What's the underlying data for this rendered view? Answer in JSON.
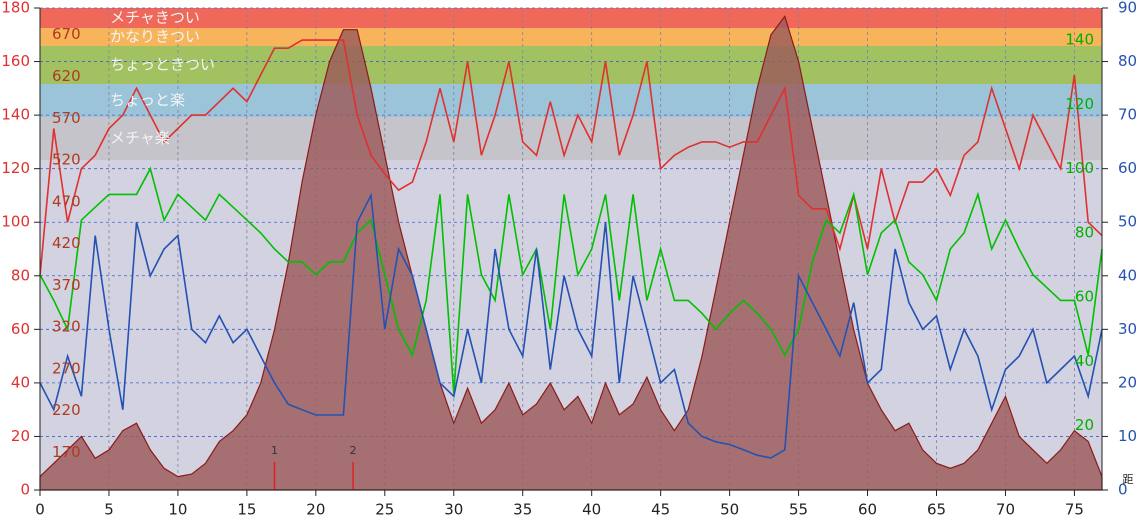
{
  "chart_data": {
    "type": "line",
    "xlabel": "距",
    "xlim": [
      0,
      77
    ],
    "xticks": [
      0,
      5,
      10,
      15,
      20,
      25,
      30,
      35,
      40,
      45,
      50,
      55,
      60,
      65,
      70,
      75
    ],
    "ylim": [
      0,
      180
    ],
    "yticks": [
      0,
      20,
      40,
      60,
      80,
      100,
      120,
      140,
      160,
      180
    ],
    "y2lim": [
      0,
      90
    ],
    "y2ticks": [
      0,
      10,
      20,
      30,
      40,
      50,
      60,
      70,
      80,
      90
    ],
    "y3lim": [
      125,
      702
    ],
    "y3ticks": [
      170,
      220,
      270,
      320,
      370,
      420,
      470,
      520,
      570,
      620,
      670
    ],
    "y4lim": [
      0,
      150
    ],
    "y4ticks": [
      20,
      40,
      60,
      80,
      100,
      120,
      140
    ],
    "grid": true,
    "bands": [
      {
        "label": "メチャきつい",
        "from": 172.5,
        "to": 180,
        "color": "#f0685a"
      },
      {
        "label": "かなりきつい",
        "from": 165.8,
        "to": 172.5,
        "color": "#f7b45a"
      },
      {
        "label": "ちょっときつい",
        "from": 151.6,
        "to": 165.8,
        "color": "#a2c262"
      },
      {
        "label": "ちょっと楽",
        "from": 139.3,
        "to": 151.6,
        "color": "#9cc4d8"
      },
      {
        "label": "メチャ楽",
        "from": 123.2,
        "to": 139.3,
        "color": "#c4c4ca"
      }
    ],
    "markers": [
      {
        "x": 17,
        "label": "1"
      },
      {
        "x": 22.7,
        "label": "2"
      }
    ],
    "x": [
      0,
      1,
      2,
      3,
      4,
      5,
      6,
      7,
      8,
      9,
      10,
      11,
      12,
      13,
      14,
      15,
      16,
      17,
      18,
      19,
      20,
      21,
      22,
      23,
      24,
      25,
      26,
      27,
      28,
      29,
      30,
      31,
      32,
      33,
      34,
      35,
      36,
      37,
      38,
      39,
      40,
      41,
      42,
      43,
      44,
      45,
      46,
      47,
      48,
      49,
      50,
      51,
      52,
      53,
      54,
      55,
      56,
      57,
      58,
      59,
      60,
      61,
      62,
      63,
      64,
      65,
      66,
      67,
      68,
      69,
      70,
      71,
      72,
      73,
      74,
      75,
      76,
      77
    ],
    "series": [
      {
        "style": "area",
        "axis": "y3",
        "color": "#8b1a1a",
        "values": [
          141,
          157,
          173,
          189,
          163,
          173,
          196,
          205,
          173,
          151,
          141,
          144,
          157,
          183,
          196,
          215,
          253,
          317,
          397,
          494,
          574,
          638,
          676,
          676,
          606,
          526,
          446,
          381,
          317,
          253,
          205,
          247,
          205,
          221,
          253,
          215,
          228,
          253,
          221,
          237,
          205,
          253,
          215,
          228,
          260,
          221,
          196,
          221,
          285,
          365,
          446,
          526,
          606,
          670,
          692,
          638,
          558,
          478,
          397,
          317,
          253,
          221,
          196,
          205,
          173,
          157,
          151,
          157,
          173,
          205,
          237,
          189,
          173,
          157,
          173,
          196,
          183,
          141
        ]
      },
      {
        "style": "line",
        "axis": "y",
        "color": "#e03030",
        "values": [
          80,
          135,
          100,
          120,
          125,
          135,
          140,
          150,
          140,
          130,
          135,
          140,
          140,
          145,
          150,
          145,
          155,
          165,
          165,
          168,
          168,
          168,
          168,
          140,
          125,
          118,
          112,
          115,
          130,
          150,
          130,
          160,
          125,
          140,
          160,
          130,
          125,
          145,
          125,
          140,
          130,
          160,
          125,
          140,
          160,
          120,
          125,
          128,
          130,
          130,
          128,
          130,
          130,
          140,
          150,
          110,
          105,
          105,
          90,
          110,
          90,
          120,
          100,
          115,
          115,
          120,
          110,
          125,
          130,
          150,
          135,
          120,
          140,
          130,
          120,
          155,
          100,
          95
        ]
      },
      {
        "style": "line",
        "axis": "y4",
        "color": "#00c000",
        "values": [
          67,
          59,
          50,
          84,
          88,
          92,
          92,
          92,
          100,
          84,
          92,
          88,
          84,
          92,
          88,
          84,
          80,
          75,
          71,
          71,
          67,
          71,
          71,
          80,
          84,
          67,
          50,
          42,
          59,
          92,
          30,
          92,
          67,
          59,
          92,
          67,
          75,
          50,
          92,
          67,
          75,
          92,
          59,
          92,
          59,
          75,
          59,
          59,
          55,
          50,
          55,
          59,
          55,
          50,
          42,
          50,
          71,
          84,
          80,
          92,
          67,
          80,
          84,
          71,
          67,
          59,
          75,
          80,
          92,
          75,
          84,
          75,
          67,
          63,
          59,
          59,
          42,
          75
        ]
      },
      {
        "style": "line",
        "axis": "y2",
        "color": "#2452b2",
        "values": [
          20,
          15,
          25,
          17.5,
          47.5,
          30,
          15,
          50,
          40,
          45,
          47.5,
          30,
          27.5,
          32.5,
          27.5,
          30,
          25,
          20,
          16,
          15,
          14,
          14,
          14,
          50,
          55,
          30,
          45,
          40,
          30,
          20,
          17.5,
          30,
          20,
          45,
          30,
          25,
          45,
          22.5,
          40,
          30,
          25,
          50,
          20,
          40,
          30,
          20,
          22.5,
          12.5,
          10,
          9,
          8.5,
          7.5,
          6.5,
          6,
          7.5,
          40,
          35,
          30,
          25,
          35,
          20,
          22.5,
          45,
          35,
          30,
          32.5,
          22.5,
          30,
          25,
          15,
          22.5,
          25,
          30,
          20,
          22.5,
          25,
          17.5,
          30
        ]
      }
    ]
  }
}
